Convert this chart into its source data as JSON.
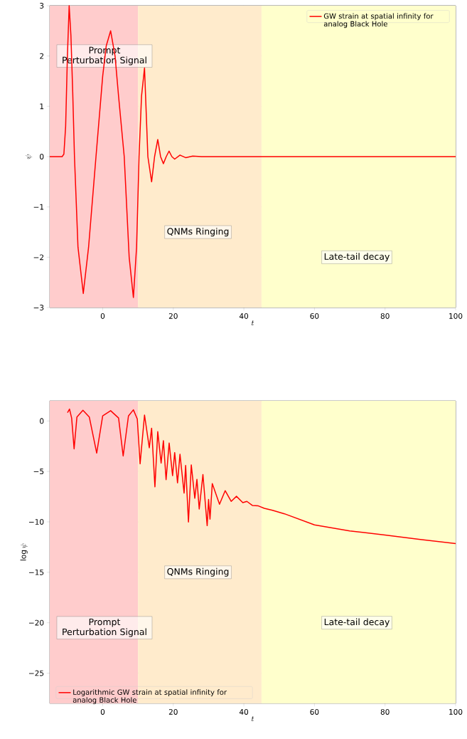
{
  "chart_data": [
    {
      "type": "line",
      "xlabel": "t",
      "ylabel": "\\psi",
      "xlim": [
        -15,
        100
      ],
      "ylim": [
        -3,
        3
      ],
      "xticks": [
        0,
        20,
        40,
        60,
        80,
        100
      ],
      "yticks": [
        {
          "value": -3,
          "label": "−3"
        },
        {
          "value": -2,
          "label": "−2"
        },
        {
          "value": -1,
          "label": "−1"
        },
        0,
        1,
        2,
        3
      ],
      "grid": true,
      "legend": "top right",
      "marker": "none",
      "line_style": "solid",
      "series": [
        {
          "name": "GW strain at spatial infinity for analog Black Hole",
          "color": "#ff0000",
          "x": [
            -15,
            -11.5,
            -11,
            -10.5,
            -10,
            -9.5,
            -9,
            -8.5,
            -8,
            -7,
            -5.5,
            -4,
            -1.9,
            0,
            1,
            2.25,
            3.5,
            4.5,
            6.1,
            7.5,
            8.7,
            9.6,
            10.3,
            11.0,
            11.85,
            12.8,
            13.86,
            14.7,
            15.6,
            16.4,
            17.2,
            18.0,
            18.8,
            19.6,
            20.4,
            21.9,
            23.5,
            25.5,
            28,
            30,
            100
          ],
          "values": [
            0,
            0,
            0.05,
            0.6,
            2.0,
            3.0,
            2.4,
            1.3,
            0,
            -1.8,
            -2.72,
            -1.8,
            0,
            1.6,
            2.2,
            2.5,
            2.0,
            1.2,
            0,
            -2.0,
            -2.8,
            -1.8,
            0,
            1.2,
            1.76,
            0,
            -0.5,
            0,
            0.34,
            0,
            -0.14,
            0,
            0.11,
            0,
            -0.05,
            0.03,
            -0.02,
            0.01,
            0,
            0,
            0
          ]
        }
      ],
      "bands": [
        {
          "axis": "x",
          "from": -15,
          "to": 10,
          "label": "Prompt Perturbation Signal",
          "color": "#ffcccc"
        },
        {
          "axis": "x",
          "from": 10,
          "to": 45,
          "label": "QNMs Ringing",
          "color": "#ffebcc"
        },
        {
          "axis": "x",
          "from": 45,
          "to": 100,
          "label": "Late-tail decay",
          "color": "#ffffcc"
        }
      ]
    },
    {
      "type": "line",
      "xlabel": "t",
      "ylabel": "\\log\\psi",
      "xlim": [
        -15,
        100
      ],
      "ylim": [
        -28,
        2
      ],
      "xticks": [
        0,
        20,
        40,
        60,
        80,
        100
      ],
      "yticks": [
        {
          "value": -25,
          "label": "−25"
        },
        {
          "value": -20,
          "label": "−20"
        },
        {
          "value": -15,
          "label": "−15"
        },
        {
          "value": -10,
          "label": "−10"
        },
        {
          "value": -5,
          "label": "−5"
        },
        0
      ],
      "grid": true,
      "legend": "bottom left",
      "marker": "none",
      "line_style": "solid",
      "series": [
        {
          "name": "Logarithmic GW strain at spatial infinity for analog Black Hole",
          "color": "#ff0000",
          "x": [
            -9.97,
            -9.4,
            -8.8,
            -8.1,
            -7.3,
            -5.6,
            -3.8,
            -1.7,
            0.0,
            2.25,
            4.5,
            5.8,
            7.3,
            8.7,
            9.8,
            10.6,
            11.85,
            13.2,
            13.86,
            14.8,
            15.6,
            16.55,
            17.2,
            17.96,
            18.83,
            19.8,
            20.4,
            21.2,
            21.9,
            23.06,
            23.5,
            24.3,
            25.1,
            26.1,
            26.7,
            27.35,
            28.4,
            29.6,
            30.0,
            30.4,
            31.05,
            33.1,
            34.7,
            36.4,
            37.9,
            39.7,
            40.85,
            42.4,
            44.1,
            45.8,
            48.1,
            51.5,
            60,
            70,
            80,
            90,
            100
          ],
          "values": [
            0.83,
            1.18,
            0.3,
            -2.76,
            0.4,
            1.06,
            0.4,
            -3.18,
            0.5,
            1.02,
            0.3,
            -3.47,
            0.5,
            1.11,
            0.2,
            -4.25,
            0.59,
            -2.66,
            -0.71,
            -6.53,
            -1.06,
            -4.18,
            -1.95,
            -5.82,
            -2.19,
            -5.42,
            -3.13,
            -6.13,
            -3.3,
            -7.15,
            -4.41,
            -10.02,
            -4.36,
            -7.66,
            -5.78,
            -8.73,
            -5.31,
            -10.38,
            -7.78,
            -9.74,
            -6.2,
            -8.25,
            -6.91,
            -7.97,
            -7.47,
            -8.09,
            -7.97,
            -8.37,
            -8.42,
            -8.66,
            -8.85,
            -9.2,
            -10.3,
            -10.9,
            -11.3,
            -11.75,
            -12.15
          ]
        }
      ],
      "bands": [
        {
          "axis": "x",
          "from": -15,
          "to": 10,
          "label": "Prompt Perturbation Signal",
          "color": "#ffcccc"
        },
        {
          "axis": "x",
          "from": 10,
          "to": 45,
          "label": "QNMs Ringing",
          "color": "#ffebcc"
        },
        {
          "axis": "x",
          "from": 45,
          "to": 100,
          "label": "Late-tail decay",
          "color": "#ffffcc"
        }
      ]
    }
  ]
}
